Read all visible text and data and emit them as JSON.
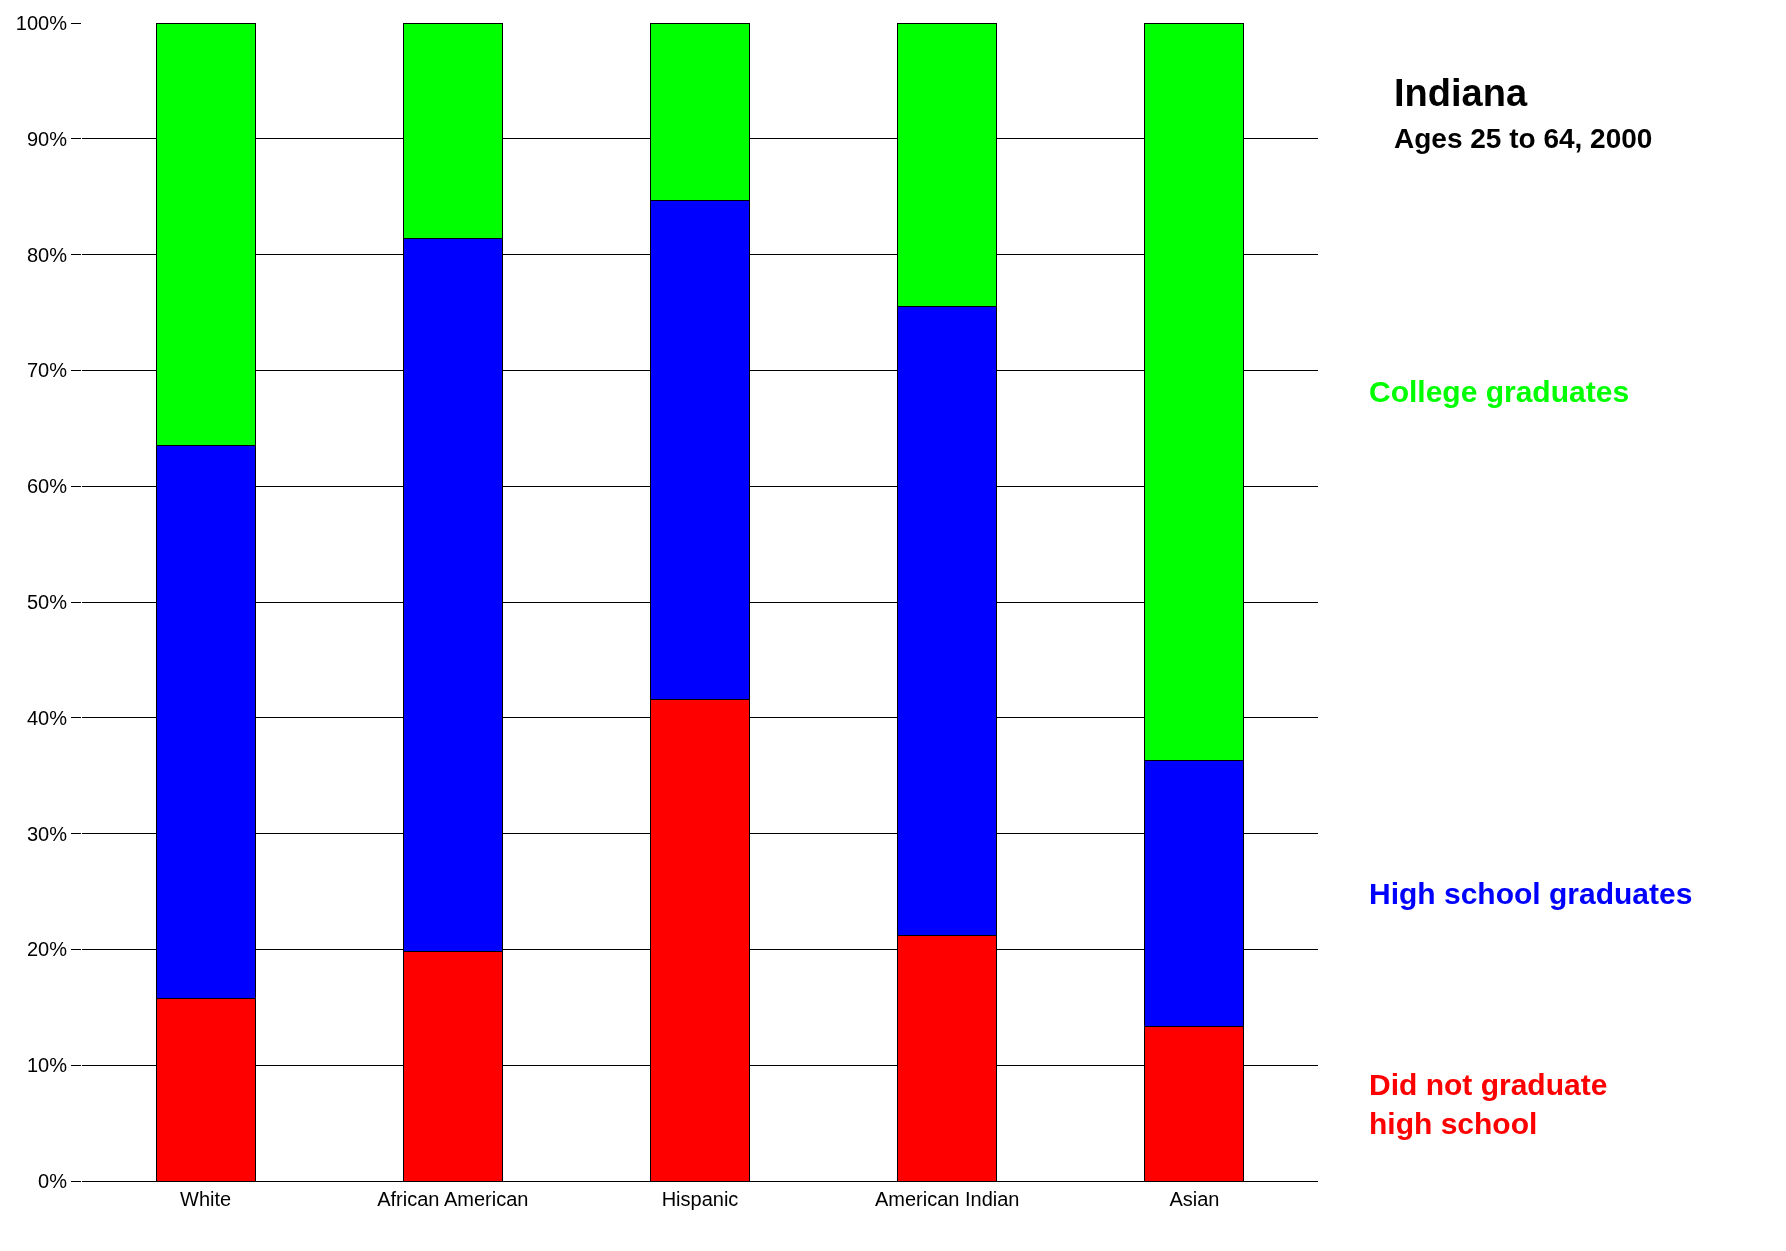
{
  "chart_data": {
    "type": "bar",
    "stacked": true,
    "title": "Indiana",
    "subtitle": "Ages 25 to 64, 2000",
    "categories": [
      "White",
      "African American",
      "Hispanic",
      "American Indian",
      "Asian"
    ],
    "series": [
      {
        "name": "Did not graduate high school",
        "color": "#ff0000",
        "values": [
          15.8,
          19.8,
          41.6,
          21.2,
          13.3
        ]
      },
      {
        "name": "High school graduates",
        "color": "#0000ff",
        "values": [
          47.7,
          61.6,
          43.1,
          54.3,
          23.0
        ]
      },
      {
        "name": "College graduates",
        "color": "#00ff00",
        "values": [
          36.5,
          18.6,
          15.3,
          24.5,
          63.7
        ]
      }
    ],
    "ylim": [
      0,
      100
    ],
    "yticks": [
      {
        "value": 0,
        "label": "0%"
      },
      {
        "value": 10,
        "label": "10%"
      },
      {
        "value": 20,
        "label": "20%"
      },
      {
        "value": 30,
        "label": "30%"
      },
      {
        "value": 40,
        "label": "40%"
      },
      {
        "value": 50,
        "label": "50%"
      },
      {
        "value": 60,
        "label": "60%"
      },
      {
        "value": 70,
        "label": "70%"
      },
      {
        "value": 80,
        "label": "80%"
      },
      {
        "value": 90,
        "label": "90%"
      },
      {
        "value": 100,
        "label": "100%"
      }
    ],
    "grid": "y"
  }
}
